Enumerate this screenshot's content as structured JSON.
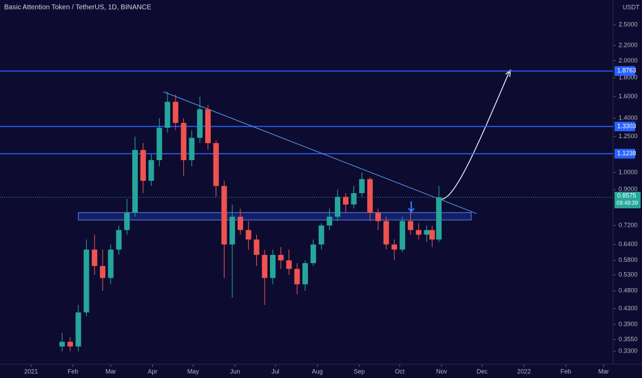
{
  "chart_data": {
    "type": "candlestick",
    "title": "Basic Attention Token / TetherUS, 1D, BINANCE",
    "currency": "USDT",
    "log_scale": true,
    "up_color": "#26a69a",
    "down_color": "#ef5350",
    "x": [
      23,
      29,
      35,
      41,
      47,
      53,
      59,
      65,
      71,
      77,
      83,
      89,
      95,
      101,
      107,
      113,
      119,
      125,
      131,
      137,
      143,
      149,
      155,
      161,
      167,
      173,
      179,
      185,
      191,
      197,
      203,
      209,
      215,
      221,
      227,
      233,
      239,
      245,
      251,
      257,
      263,
      269,
      275,
      281,
      287,
      293,
      297,
      302
    ],
    "open": [
      0.34,
      0.35,
      0.34,
      0.42,
      0.62,
      0.56,
      0.52,
      0.62,
      0.7,
      0.78,
      1.15,
      0.95,
      1.08,
      1.32,
      1.55,
      1.36,
      1.08,
      1.24,
      1.48,
      1.2,
      0.92,
      0.64,
      0.76,
      0.7,
      0.66,
      0.6,
      0.52,
      0.6,
      0.58,
      0.55,
      0.5,
      0.57,
      0.64,
      0.72,
      0.76,
      0.86,
      0.82,
      0.88,
      0.96,
      0.78,
      0.74,
      0.64,
      0.62,
      0.74,
      0.7,
      0.68,
      0.7,
      0.66
    ],
    "high": [
      0.37,
      0.36,
      0.44,
      0.66,
      0.68,
      0.62,
      0.64,
      0.72,
      0.85,
      1.25,
      1.2,
      1.12,
      1.4,
      1.65,
      1.62,
      1.4,
      1.3,
      1.6,
      1.52,
      1.22,
      0.95,
      0.82,
      0.8,
      0.74,
      0.68,
      0.62,
      0.62,
      0.63,
      0.62,
      0.57,
      0.58,
      0.66,
      0.73,
      0.8,
      0.9,
      0.88,
      0.92,
      1.0,
      0.97,
      0.8,
      0.76,
      0.66,
      0.76,
      0.78,
      0.73,
      0.72,
      0.72,
      0.92
    ],
    "low": [
      0.33,
      0.33,
      0.33,
      0.41,
      0.53,
      0.48,
      0.5,
      0.6,
      0.68,
      0.76,
      0.88,
      0.92,
      1.04,
      1.28,
      1.3,
      0.98,
      1.04,
      1.2,
      1.15,
      0.86,
      0.52,
      0.46,
      0.68,
      0.62,
      0.56,
      0.44,
      0.5,
      0.55,
      0.53,
      0.47,
      0.48,
      0.56,
      0.62,
      0.7,
      0.74,
      0.78,
      0.8,
      0.86,
      0.74,
      0.7,
      0.62,
      0.58,
      0.61,
      0.68,
      0.66,
      0.65,
      0.63,
      0.65
    ],
    "close": [
      0.35,
      0.34,
      0.42,
      0.62,
      0.56,
      0.52,
      0.62,
      0.7,
      0.78,
      1.15,
      0.95,
      1.08,
      1.32,
      1.55,
      1.36,
      1.08,
      1.24,
      1.48,
      1.2,
      0.92,
      0.64,
      0.76,
      0.7,
      0.66,
      0.6,
      0.52,
      0.6,
      0.58,
      0.55,
      0.5,
      0.57,
      0.64,
      0.72,
      0.76,
      0.86,
      0.82,
      0.88,
      0.96,
      0.78,
      0.74,
      0.64,
      0.62,
      0.74,
      0.7,
      0.68,
      0.7,
      0.66,
      0.8575
    ],
    "xlim": [
      -23,
      431
    ],
    "xticks": [
      {
        "value": 0,
        "label": "2021"
      },
      {
        "value": 31,
        "label": "Feb"
      },
      {
        "value": 59,
        "label": "Mar"
      },
      {
        "value": 90,
        "label": "Apr"
      },
      {
        "value": 120,
        "label": "May"
      },
      {
        "value": 151,
        "label": "Jun"
      },
      {
        "value": 181,
        "label": "Jul"
      },
      {
        "value": 212,
        "label": "Aug"
      },
      {
        "value": 243,
        "label": "Sep"
      },
      {
        "value": 273,
        "label": "Oct"
      },
      {
        "value": 304,
        "label": "Nov"
      },
      {
        "value": 334,
        "label": "Dec"
      },
      {
        "value": 365,
        "label": "2022"
      },
      {
        "value": 396,
        "label": "Feb"
      },
      {
        "value": 424,
        "label": "Mar"
      }
    ],
    "ylim": [
      0.3045,
      2.915
    ],
    "yticks": [
      {
        "value": 2.5,
        "label": "2.5000"
      },
      {
        "value": 2.2,
        "label": "2.2000"
      },
      {
        "value": 2,
        "label": "2.0000"
      },
      {
        "value": 1.8,
        "label": "1.8000"
      },
      {
        "value": 1.6,
        "label": "1.6000"
      },
      {
        "value": 1.4,
        "label": "1.4000"
      },
      {
        "value": 1.25,
        "label": "1.2500"
      },
      {
        "value": 1,
        "label": "1.0000"
      },
      {
        "value": 0.9,
        "label": "0.9000"
      },
      {
        "value": 0.72,
        "label": "0.7200"
      },
      {
        "value": 0.64,
        "label": "0.6400"
      },
      {
        "value": 0.58,
        "label": "0.5800"
      },
      {
        "value": 0.53,
        "label": "0.5300"
      },
      {
        "value": 0.48,
        "label": "0.4800"
      },
      {
        "value": 0.43,
        "label": "0.4300"
      },
      {
        "value": 0.39,
        "label": "0.3900"
      },
      {
        "value": 0.355,
        "label": "0.3550"
      },
      {
        "value": 0.33,
        "label": "0.3300"
      }
    ],
    "hlines": [
      1.8763,
      1.3303,
      1.1238
    ],
    "hline_color": "#2962ff",
    "last_price": 0.8575,
    "countdown": "09:49:39",
    "trendline": {
      "x": [
        98,
        330
      ],
      "y": [
        1.65,
        0.775
      ]
    },
    "zone": {
      "x": [
        35,
        326
      ],
      "y": [
        0.745,
        0.78
      ]
    }
  }
}
